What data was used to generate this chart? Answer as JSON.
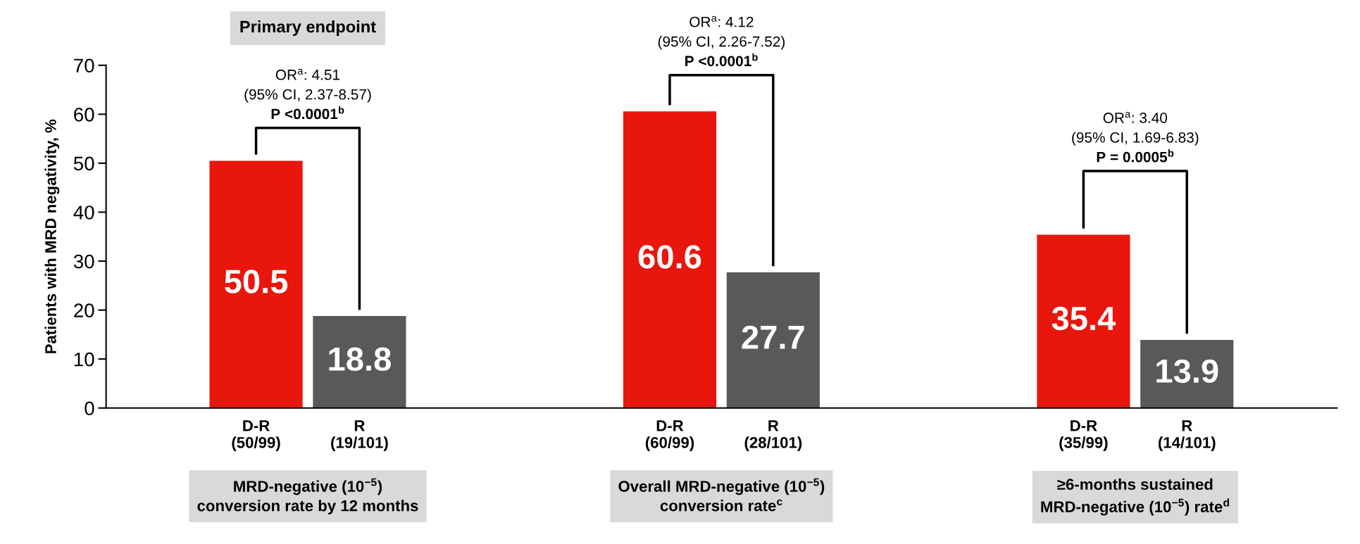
{
  "chart_data": {
    "type": "bar",
    "ylabel": "Patients with MRD negativity, %",
    "categories": [
      "D-R\n(50/99)",
      "R\n(19/101)",
      null,
      null,
      "D-R\n(60/99)",
      "R\n(28/101)",
      null,
      null,
      "D-R\n(35/99)",
      "R\n(14/101)"
    ],
    "values": [
      50.5,
      18.8,
      null,
      null,
      60.6,
      27.7,
      null,
      null,
      35.4,
      13.9
    ],
    "colors": [
      "#e8160c",
      "#595959",
      null,
      null,
      "#e8160c",
      "#595959",
      null,
      null,
      "#e8160c",
      "#595959"
    ],
    "ylim": [
      0,
      70
    ],
    "yticks": [
      0,
      10,
      20,
      30,
      40,
      50,
      60,
      70
    ],
    "data_labels": true,
    "grid": false,
    "legend": false,
    "annotations": [
      "Primary endpoint",
      "OR$^{a}$: 4.51\n(95% CI, 2.37-8.57)\nP <0.0001$^{b}$",
      "OR$^{a}$: 4.12\n(95% CI, 2.26-7.52)\nP <0.0001$^{b}$",
      "OR$^{a}$: 3.40\n(95% CI, 1.69-6.83)\nP = 0.0005$^{b}$",
      "MRD-negative (10$^{−5}$)\nconversion rate by 12 months",
      "Overall MRD-negative (10$^{−5}$)\nconversion rate$^{c}$",
      "≥6-months sustained\nMRD-negative (10$^{−5}$) rate$^{d}$"
    ]
  }
}
